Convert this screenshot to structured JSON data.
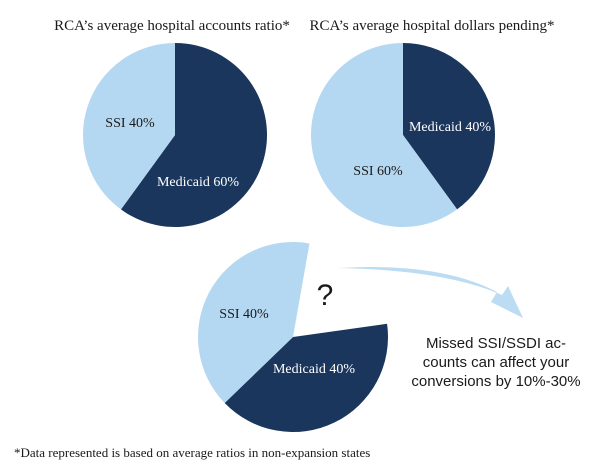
{
  "colors": {
    "ssi": "#b5d8f2",
    "medicaid": "#1b365d",
    "label_dark": "#1a1a1a",
    "label_light": "#ffffff",
    "arrow": "#bcdcf3"
  },
  "chart_data": [
    {
      "type": "pie",
      "title": "RCA’s average hospital accounts ratio*",
      "slices": [
        {
          "label": "Medicaid 60%",
          "value": 60,
          "color": "#1b365d"
        },
        {
          "label": "SSI 40%",
          "value": 40,
          "color": "#b5d8f2"
        }
      ]
    },
    {
      "type": "pie",
      "title": "RCA’s average hospital dollars pending*",
      "slices": [
        {
          "label": "Medicaid 40%",
          "value": 40,
          "color": "#1b365d"
        },
        {
          "label": "SSI  60%",
          "value": 60,
          "color": "#b5d8f2"
        }
      ]
    },
    {
      "type": "pie",
      "title": "",
      "slices": [
        {
          "label": "Medicaid 40%",
          "value": 40,
          "color": "#1b365d"
        },
        {
          "label": "SSI 40%",
          "value": 40,
          "color": "#b5d8f2"
        },
        {
          "label": "?",
          "value": 20,
          "color": "#ffffff"
        }
      ]
    }
  ],
  "callout": {
    "lines": [
      "Missed SSI/SSDI ac-",
      "counts can affect your",
      "conversions by 10%-30%"
    ]
  },
  "footnote": "*Data represented is based on average ratios in non-expansion states"
}
